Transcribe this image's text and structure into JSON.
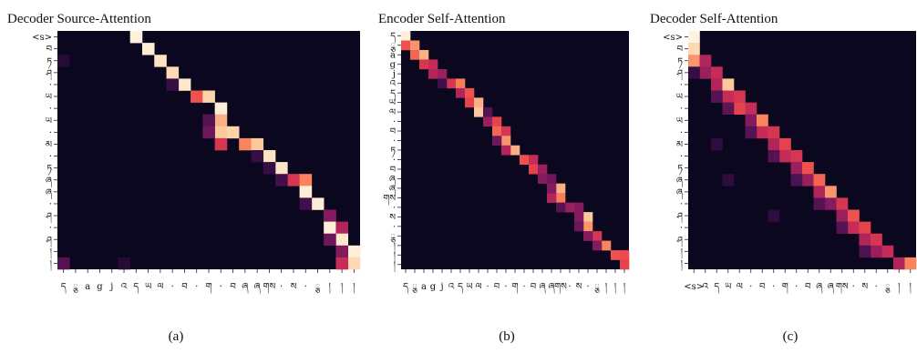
{
  "chart_data": [
    {
      "type": "heatmap",
      "title": "Decoder Source-Attention",
      "caption": "(a)",
      "rows": 20,
      "cols": 25,
      "ylabels": [
        "<s>",
        "བ",
        "ཏ",
        "ཤ",
        "·",
        "ཡ",
        "·",
        "ཡ",
        "·",
        "མ",
        "·",
        "ཏ",
        "ཞ",
        "ཞ",
        "·",
        "ཤ",
        "·",
        "ཤ",
        "།",
        "།"
      ],
      "xlabels": [
        "ད",
        "ྕ",
        "a",
        "g",
        "j",
        "འ",
        "ད",
        "ཡ",
        "ལ",
        "·",
        "བ",
        "·",
        "ག",
        "·",
        "བ",
        "ཞ",
        "ཞ",
        "གས",
        "·",
        "ས",
        "·",
        "ྕ",
        "།",
        "།",
        "།"
      ],
      "cells": [
        {
          "r": 0,
          "c": 6,
          "v": 0.98
        },
        {
          "r": 1,
          "c": 7,
          "v": 0.96
        },
        {
          "r": 2,
          "c": 8,
          "v": 0.93
        },
        {
          "r": 3,
          "c": 9,
          "v": 0.9
        },
        {
          "r": 4,
          "c": 10,
          "v": 0.95
        },
        {
          "r": 5,
          "c": 11,
          "v": 0.6
        },
        {
          "r": 5,
          "c": 12,
          "v": 0.88
        },
        {
          "r": 6,
          "c": 13,
          "v": 0.97
        },
        {
          "r": 7,
          "c": 13,
          "v": 0.8
        },
        {
          "r": 8,
          "c": 13,
          "v": 0.85
        },
        {
          "r": 8,
          "c": 14,
          "v": 0.88
        },
        {
          "r": 9,
          "c": 13,
          "v": 0.5
        },
        {
          "r": 9,
          "c": 15,
          "v": 0.72
        },
        {
          "r": 9,
          "c": 16,
          "v": 0.85
        },
        {
          "r": 10,
          "c": 17,
          "v": 0.93
        },
        {
          "r": 11,
          "c": 18,
          "v": 0.94
        },
        {
          "r": 12,
          "c": 19,
          "v": 0.5
        },
        {
          "r": 12,
          "c": 20,
          "v": 0.72
        },
        {
          "r": 13,
          "c": 20,
          "v": 0.97
        },
        {
          "r": 14,
          "c": 21,
          "v": 0.97
        },
        {
          "r": 15,
          "c": 22,
          "v": 0.3
        },
        {
          "r": 15,
          "c": 22,
          "v": 0.3
        },
        {
          "r": 16,
          "c": 22,
          "v": 0.97
        },
        {
          "r": 16,
          "c": 23,
          "v": 0.4
        },
        {
          "r": 17,
          "c": 23,
          "v": 0.95
        },
        {
          "r": 18,
          "c": 24,
          "v": 0.97
        },
        {
          "r": 18,
          "c": 23,
          "v": 0.3
        },
        {
          "r": 19,
          "c": 24,
          "v": 0.9
        },
        {
          "r": 19,
          "c": 23,
          "v": 0.45
        },
        {
          "r": 12,
          "c": 18,
          "v": 0.15
        },
        {
          "r": 11,
          "c": 17,
          "v": 0.12
        },
        {
          "r": 4,
          "c": 9,
          "v": 0.12
        },
        {
          "r": 2,
          "c": 0,
          "v": 0.08
        },
        {
          "r": 19,
          "c": 0,
          "v": 0.2
        },
        {
          "r": 7,
          "c": 12,
          "v": 0.2
        },
        {
          "r": 8,
          "c": 12,
          "v": 0.25
        },
        {
          "r": 10,
          "c": 16,
          "v": 0.12
        },
        {
          "r": 14,
          "c": 20,
          "v": 0.15
        },
        {
          "r": 17,
          "c": 22,
          "v": 0.25
        },
        {
          "r": 19,
          "c": 5,
          "v": 0.08
        }
      ]
    },
    {
      "type": "heatmap",
      "title": "Encoder Self-Attention",
      "caption": "(b)",
      "rows": 25,
      "cols": 25,
      "ylabels": [
        "ད",
        "ྕ",
        "a",
        "g",
        "j",
        "འ",
        "ད",
        "ཡ",
        "ལ",
        "·",
        "བ",
        "·",
        "ཏ",
        "·",
        "བ",
        "ཞ",
        "ཞ",
        "གས",
        "·",
        "ས",
        "·",
        "ྕ",
        "།",
        "།",
        "།"
      ],
      "xlabels": [
        "ད",
        "ྕ",
        "a",
        "g",
        "j",
        "འ",
        "ད",
        "ཡ",
        "ལ",
        "·",
        "བ",
        "·",
        "ག",
        "·",
        "བ",
        "ཞ",
        "ཞ",
        "གས",
        "·",
        "ས",
        "·",
        "ྕ",
        "།",
        "།",
        "།"
      ],
      "cells": [
        {
          "r": 0,
          "c": 0,
          "v": 0.98
        },
        {
          "r": 1,
          "c": 0,
          "v": 0.6
        },
        {
          "r": 1,
          "c": 1,
          "v": 0.75
        },
        {
          "r": 2,
          "c": 1,
          "v": 0.65
        },
        {
          "r": 2,
          "c": 2,
          "v": 0.8
        },
        {
          "r": 3,
          "c": 2,
          "v": 0.5
        },
        {
          "r": 3,
          "c": 3,
          "v": 0.45
        },
        {
          "r": 4,
          "c": 3,
          "v": 0.4
        },
        {
          "r": 4,
          "c": 4,
          "v": 0.35
        },
        {
          "r": 5,
          "c": 5,
          "v": 0.5
        },
        {
          "r": 5,
          "c": 6,
          "v": 0.7
        },
        {
          "r": 6,
          "c": 6,
          "v": 0.4
        },
        {
          "r": 6,
          "c": 7,
          "v": 0.6
        },
        {
          "r": 7,
          "c": 7,
          "v": 0.55
        },
        {
          "r": 7,
          "c": 8,
          "v": 0.8
        },
        {
          "r": 8,
          "c": 8,
          "v": 0.85
        },
        {
          "r": 9,
          "c": 9,
          "v": 0.35
        },
        {
          "r": 9,
          "c": 10,
          "v": 0.55
        },
        {
          "r": 10,
          "c": 10,
          "v": 0.65
        },
        {
          "r": 10,
          "c": 11,
          "v": 0.5
        },
        {
          "r": 11,
          "c": 11,
          "v": 0.75
        },
        {
          "r": 12,
          "c": 12,
          "v": 0.8
        },
        {
          "r": 12,
          "c": 11,
          "v": 0.4
        },
        {
          "r": 13,
          "c": 13,
          "v": 0.6
        },
        {
          "r": 13,
          "c": 14,
          "v": 0.45
        },
        {
          "r": 14,
          "c": 14,
          "v": 0.55
        },
        {
          "r": 14,
          "c": 15,
          "v": 0.35
        },
        {
          "r": 15,
          "c": 15,
          "v": 0.3
        },
        {
          "r": 15,
          "c": 16,
          "v": 0.25
        },
        {
          "r": 16,
          "c": 17,
          "v": 0.8
        },
        {
          "r": 17,
          "c": 17,
          "v": 0.7
        },
        {
          "r": 17,
          "c": 16,
          "v": 0.4
        },
        {
          "r": 18,
          "c": 18,
          "v": 0.35
        },
        {
          "r": 18,
          "c": 19,
          "v": 0.3
        },
        {
          "r": 19,
          "c": 20,
          "v": 0.85
        },
        {
          "r": 20,
          "c": 20,
          "v": 0.75
        },
        {
          "r": 21,
          "c": 21,
          "v": 0.5
        },
        {
          "r": 22,
          "c": 22,
          "v": 0.72
        },
        {
          "r": 23,
          "c": 23,
          "v": 0.6
        },
        {
          "r": 23,
          "c": 24,
          "v": 0.58
        },
        {
          "r": 24,
          "c": 24,
          "v": 0.55
        },
        {
          "r": 8,
          "c": 9,
          "v": 0.2
        },
        {
          "r": 11,
          "c": 10,
          "v": 0.25
        },
        {
          "r": 19,
          "c": 19,
          "v": 0.3
        },
        {
          "r": 20,
          "c": 19,
          "v": 0.25
        },
        {
          "r": 21,
          "c": 20,
          "v": 0.3
        },
        {
          "r": 22,
          "c": 21,
          "v": 0.3
        },
        {
          "r": 16,
          "c": 16,
          "v": 0.3
        },
        {
          "r": 18,
          "c": 17,
          "v": 0.2
        },
        {
          "r": 5,
          "c": 4,
          "v": 0.15
        }
      ]
    },
    {
      "type": "heatmap",
      "title": "Decoder Self-Attention",
      "caption": "(c)",
      "rows": 20,
      "cols": 20,
      "ylabels": [
        "<s>",
        "བ",
        "ཏ",
        "ཤ",
        "·",
        "ཡ",
        "·",
        "ཡ",
        "·",
        "མ",
        "·",
        "ཏ",
        "ཞ",
        "ཞ",
        "·",
        "ཤ",
        "·",
        "ཤ",
        "།",
        "།"
      ],
      "xlabels": [
        "<s>",
        "འ",
        "ད",
        "ཡ",
        "ལ",
        "·",
        "བ",
        "·",
        "ག",
        "·",
        "བ",
        "ཞ",
        "ཞ",
        "གས",
        "·",
        "ས",
        "·",
        "ྕ",
        "།",
        "།"
      ],
      "cells": [
        {
          "r": 0,
          "c": 0,
          "v": 0.99
        },
        {
          "r": 1,
          "c": 0,
          "v": 0.9
        },
        {
          "r": 2,
          "c": 0,
          "v": 0.75
        },
        {
          "r": 2,
          "c": 1,
          "v": 0.4
        },
        {
          "r": 3,
          "c": 1,
          "v": 0.35
        },
        {
          "r": 3,
          "c": 2,
          "v": 0.45
        },
        {
          "r": 4,
          "c": 2,
          "v": 0.4
        },
        {
          "r": 4,
          "c": 3,
          "v": 0.85
        },
        {
          "r": 5,
          "c": 3,
          "v": 0.45
        },
        {
          "r": 5,
          "c": 4,
          "v": 0.5
        },
        {
          "r": 6,
          "c": 4,
          "v": 0.55
        },
        {
          "r": 6,
          "c": 5,
          "v": 0.45
        },
        {
          "r": 7,
          "c": 5,
          "v": 0.3
        },
        {
          "r": 7,
          "c": 6,
          "v": 0.72
        },
        {
          "r": 8,
          "c": 6,
          "v": 0.45
        },
        {
          "r": 8,
          "c": 7,
          "v": 0.5
        },
        {
          "r": 9,
          "c": 7,
          "v": 0.4
        },
        {
          "r": 9,
          "c": 8,
          "v": 0.55
        },
        {
          "r": 10,
          "c": 8,
          "v": 0.45
        },
        {
          "r": 10,
          "c": 9,
          "v": 0.5
        },
        {
          "r": 11,
          "c": 9,
          "v": 0.35
        },
        {
          "r": 11,
          "c": 10,
          "v": 0.6
        },
        {
          "r": 12,
          "c": 10,
          "v": 0.35
        },
        {
          "r": 12,
          "c": 11,
          "v": 0.65
        },
        {
          "r": 13,
          "c": 11,
          "v": 0.4
        },
        {
          "r": 13,
          "c": 12,
          "v": 0.75
        },
        {
          "r": 14,
          "c": 12,
          "v": 0.3
        },
        {
          "r": 14,
          "c": 13,
          "v": 0.5
        },
        {
          "r": 15,
          "c": 13,
          "v": 0.35
        },
        {
          "r": 15,
          "c": 14,
          "v": 0.6
        },
        {
          "r": 16,
          "c": 14,
          "v": 0.45
        },
        {
          "r": 16,
          "c": 15,
          "v": 0.55
        },
        {
          "r": 17,
          "c": 15,
          "v": 0.4
        },
        {
          "r": 17,
          "c": 16,
          "v": 0.5
        },
        {
          "r": 18,
          "c": 16,
          "v": 0.35
        },
        {
          "r": 18,
          "c": 17,
          "v": 0.45
        },
        {
          "r": 19,
          "c": 18,
          "v": 0.4
        },
        {
          "r": 19,
          "c": 19,
          "v": 0.72
        },
        {
          "r": 3,
          "c": 0,
          "v": 0.12
        },
        {
          "r": 5,
          "c": 2,
          "v": 0.2
        },
        {
          "r": 6,
          "c": 3,
          "v": 0.22
        },
        {
          "r": 8,
          "c": 5,
          "v": 0.2
        },
        {
          "r": 10,
          "c": 7,
          "v": 0.2
        },
        {
          "r": 12,
          "c": 9,
          "v": 0.18
        },
        {
          "r": 14,
          "c": 11,
          "v": 0.2
        },
        {
          "r": 16,
          "c": 13,
          "v": 0.2
        },
        {
          "r": 18,
          "c": 15,
          "v": 0.18
        },
        {
          "r": 9,
          "c": 2,
          "v": 0.1
        },
        {
          "r": 12,
          "c": 3,
          "v": 0.1
        },
        {
          "r": 15,
          "c": 7,
          "v": 0.1
        }
      ]
    }
  ]
}
